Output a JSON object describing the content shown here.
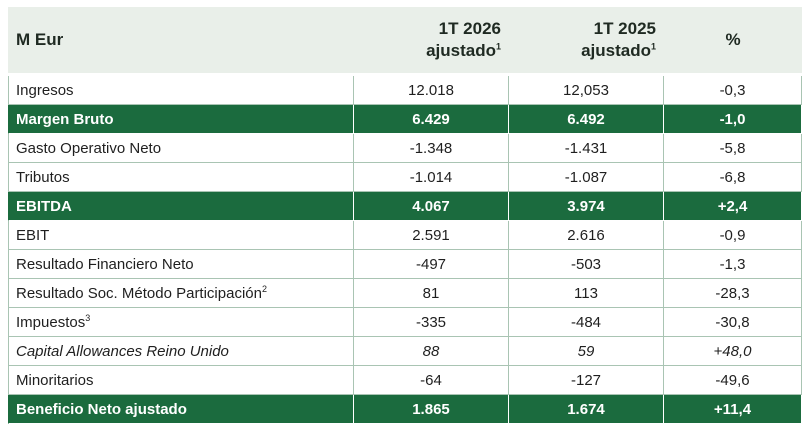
{
  "header": {
    "label": "M Eur",
    "col1_line1": "1T 2026",
    "col1_line2": "ajustado",
    "col1_sup": "1",
    "col2_line1": "1T 2025",
    "col2_line2": "ajustado",
    "col2_sup": "1",
    "col3": "%"
  },
  "rows": [
    {
      "label": "Ingresos",
      "sup": "",
      "v2026": "12.018",
      "v2025": "12,053",
      "pct": "-0,3"
    },
    {
      "label": "Margen Bruto",
      "sup": "",
      "v2026": "6.429",
      "v2025": "6.492",
      "pct": "-1,0"
    },
    {
      "label": "Gasto Operativo Neto",
      "sup": "",
      "v2026": "-1.348",
      "v2025": "-1.431",
      "pct": "-5,8"
    },
    {
      "label": "Tributos",
      "sup": "",
      "v2026": "-1.014",
      "v2025": "-1.087",
      "pct": "-6,8"
    },
    {
      "label": "EBITDA",
      "sup": "",
      "v2026": "4.067",
      "v2025": "3.974",
      "pct": "+2,4"
    },
    {
      "label": "EBIT",
      "sup": "",
      "v2026": "2.591",
      "v2025": "2.616",
      "pct": "-0,9"
    },
    {
      "label": "Resultado Financiero Neto",
      "sup": "",
      "v2026": "-497",
      "v2025": "-503",
      "pct": "-1,3"
    },
    {
      "label": "Resultado Soc. Método Participación",
      "sup": "2",
      "v2026": "81",
      "v2025": "113",
      "pct": "-28,3"
    },
    {
      "label": "Impuestos",
      "sup": "3",
      "v2026": "-335",
      "v2025": "-484",
      "pct": "-30,8"
    },
    {
      "label": "Capital Allowances Reino Unido",
      "sup": "",
      "v2026": "88",
      "v2025": "59",
      "pct": "+48,0"
    },
    {
      "label": "Minoritarios",
      "sup": "",
      "v2026": "-64",
      "v2025": "-127",
      "pct": "-49,6"
    },
    {
      "label": "Beneficio Neto ajustado",
      "sup": "",
      "v2026": "1.865",
      "v2025": "1.674",
      "pct": "+11,4"
    }
  ],
  "colors": {
    "highlight": "#1b6b3e",
    "header_bg": "#e9efe9",
    "border": "#a9c4b3"
  }
}
